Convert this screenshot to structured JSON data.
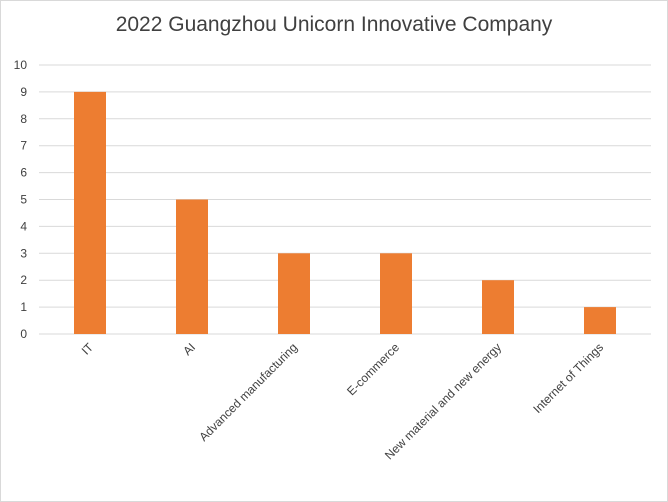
{
  "chart_data": {
    "type": "bar",
    "title": "2022 Guangzhou Unicorn Innovative Company",
    "categories": [
      "IT",
      "AI",
      "Advanced manufacturing",
      "E-commerce",
      "New material and new energy",
      "Internet of Things"
    ],
    "values": [
      9,
      5,
      3,
      3,
      2,
      1
    ],
    "xlabel": "",
    "ylabel": "",
    "ylim": [
      0,
      10
    ],
    "yticks": [
      "0",
      "1",
      "2",
      "3",
      "4",
      "5",
      "6",
      "7",
      "8",
      "9",
      "10"
    ],
    "grid": true,
    "legend": "none",
    "bar_color": "#ed7d31",
    "grid_color": "#d9d9d9"
  }
}
